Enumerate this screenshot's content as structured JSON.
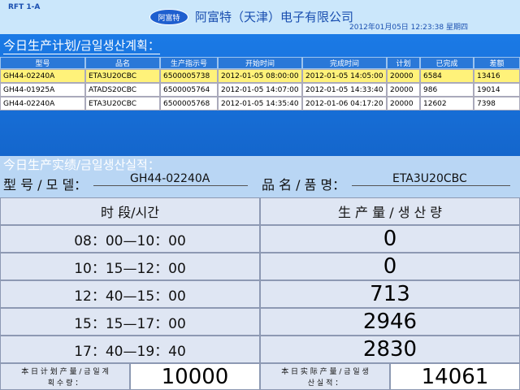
{
  "header": {
    "line": "RFT 1-A",
    "logo": "阿富特",
    "company": "阿富特（天津）电子有限公司",
    "datetime": "2012年01月05日  12:23:38  星期四"
  },
  "plan": {
    "title": "今日生产计划/금일생산계획：",
    "columns": [
      "型号",
      "品名",
      "生产指示号",
      "开始时间",
      "完成时间",
      "计划",
      "已完成",
      "差额"
    ],
    "rows": [
      [
        "GH44-02240A",
        "ETA3U20CBC",
        "6500005738",
        "2012-01-05 08:00:00",
        "2012-01-05 14:05:00",
        20000,
        6584,
        13416
      ],
      [
        "GH44-01925A",
        "ATADS20CBC",
        "6500005764",
        "2012-01-05 14:07:00",
        "2012-01-05 14:33:40",
        20000,
        986,
        19014
      ],
      [
        "GH44-02240A",
        "ETA3U20CBC",
        "6500005768",
        "2012-01-05 14:35:40",
        "2012-01-06 04:17:20",
        20000,
        12602,
        7398
      ]
    ]
  },
  "actual": {
    "title": "今日生产实绩/금일생산실적：",
    "model_label": "型 号 / 모 델：",
    "model": "GH44-02240A",
    "product_label": "品 名 / 품 명：",
    "product": "ETA3U20CBC",
    "columns": [
      "时 段/시간",
      "生 产 量 / 생 산 량"
    ],
    "rows": [
      [
        "08：00—10：00",
        0
      ],
      [
        "10：15—12：00",
        0
      ],
      [
        "12：40—15：00",
        713
      ],
      [
        "15：15—17：00",
        2946
      ],
      [
        "17：40—19：40",
        2830
      ]
    ],
    "plan_total_label": "本 日 计 划 产 量 / 금 일 계 획 수 량 ：",
    "plan_total": 10000,
    "actual_total_label": "本 日 实 际 产 量 / 금 일 생 산 실 적 ：",
    "actual_total": 14061
  }
}
